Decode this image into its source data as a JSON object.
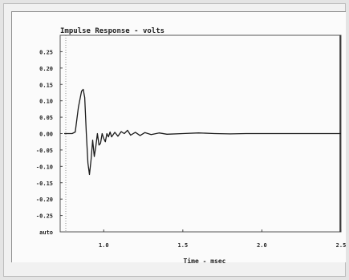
{
  "chart_data": {
    "type": "line",
    "title": "Impulse Response - volts",
    "xlabel": "Time - msec",
    "ylabel": "",
    "xlim": [
      0.75,
      2.5
    ],
    "ylim": [
      -0.3,
      0.3
    ],
    "x_ticks": [
      1.0,
      1.5,
      2.0,
      2.5
    ],
    "x_tick_labels": [
      "1.0",
      "1.5",
      "2.0",
      "2.5"
    ],
    "y_ticks": [
      0.25,
      0.2,
      0.15,
      0.1,
      0.05,
      0.0,
      -0.05,
      -0.1,
      -0.15,
      -0.2,
      -0.25
    ],
    "y_tick_labels": [
      "0.25",
      "0.20",
      "0.15",
      "0.10",
      "0.05",
      "0.00",
      "-0.05",
      "-0.10",
      "-0.15",
      "-0.20",
      "-0.25"
    ],
    "y_bottom_label": "auto",
    "grid": false,
    "series": [
      {
        "color": "#1a1a1a",
        "x": [
          0.75,
          0.8,
          0.82,
          0.84,
          0.86,
          0.87,
          0.88,
          0.89,
          0.9,
          0.91,
          0.92,
          0.93,
          0.94,
          0.95,
          0.96,
          0.97,
          0.98,
          0.99,
          1.0,
          1.01,
          1.02,
          1.03,
          1.04,
          1.05,
          1.07,
          1.09,
          1.11,
          1.13,
          1.15,
          1.17,
          1.2,
          1.23,
          1.26,
          1.3,
          1.35,
          1.4,
          1.5,
          1.6,
          1.7,
          1.8,
          1.9,
          2.0,
          2.5
        ],
        "y": [
          0.0,
          0.0,
          0.005,
          0.08,
          0.13,
          0.135,
          0.11,
          0.0,
          -0.09,
          -0.125,
          -0.08,
          -0.02,
          -0.07,
          -0.04,
          0.0,
          -0.035,
          -0.03,
          0.0,
          -0.015,
          -0.025,
          0.0,
          -0.01,
          0.005,
          -0.01,
          0.004,
          -0.008,
          0.006,
          0.0,
          0.01,
          -0.005,
          0.004,
          -0.006,
          0.003,
          -0.003,
          0.002,
          -0.002,
          0.0,
          0.002,
          0.0,
          -0.001,
          0.0,
          0.0,
          0.0
        ]
      }
    ]
  }
}
